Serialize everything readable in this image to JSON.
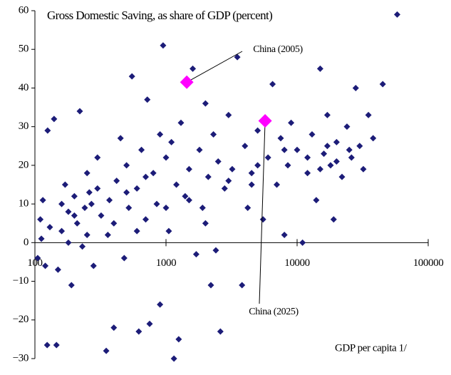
{
  "chart_data": {
    "type": "scatter",
    "title": "Gross Domestic Saving, as share of GDP (percent)",
    "x_label": "GDP per capita 1/",
    "xscale": "log",
    "xlim": [
      100,
      100000
    ],
    "xticks": [
      100,
      1000,
      10000,
      100000
    ],
    "ylim": [
      -30,
      60
    ],
    "yticks": [
      60,
      50,
      40,
      30,
      20,
      10,
      0,
      {
        "value": -10,
        "label": "−10"
      },
      {
        "value": -20,
        "label": "−20"
      },
      {
        "value": -30,
        "label": "−30"
      }
    ],
    "series": [
      {
        "color": "#1c1c78",
        "marker": "diamond",
        "x": [
          105,
          110,
          112,
          120,
          124,
          146,
          115,
          125,
          140,
          150,
          160,
          170,
          180,
          190,
          200,
          210,
          220,
          230,
          240,
          250,
          260,
          280,
          300,
          320,
          350,
          360,
          370,
          400,
          420,
          450,
          480,
          500,
          520,
          550,
          600,
          620,
          650,
          700,
          720,
          750,
          800,
          850,
          900,
          950,
          1000,
          1050,
          1100,
          1150,
          1200,
          1250,
          1300,
          1400,
          1500,
          1600,
          1700,
          1800,
          1900,
          2000,
          2100,
          2200,
          2300,
          2500,
          2600,
          2800,
          3000,
          3200,
          3500,
          3800,
          4000,
          4200,
          4500,
          5000,
          5500,
          6000,
          6500,
          7000,
          7500,
          8000,
          8500,
          9000,
          10000,
          11000,
          12000,
          13000,
          14000,
          15000,
          16000,
          17000,
          18000,
          19000,
          20000,
          22000,
          24000,
          26000,
          28000,
          30000,
          32000,
          35000,
          38000,
          45000,
          58000,
          130,
          160,
          200,
          250,
          300,
          400,
          500,
          700,
          1000,
          1500,
          2000,
          3000,
          5000,
          8000,
          12000,
          20000,
          25000,
          15000,
          180,
          270,
          600,
          900,
          2400,
          4500,
          17000
        ],
        "y": [
          -4,
          6,
          1,
          -6,
          -26.5,
          -26.5,
          11,
          29,
          32,
          -7,
          3,
          15,
          8,
          -11,
          12,
          5,
          34,
          -1,
          9,
          18,
          13,
          -6,
          22,
          7,
          -28,
          2,
          11,
          -22,
          16,
          27,
          -4,
          20,
          9,
          43,
          14,
          -23,
          24,
          6,
          37,
          -21,
          18,
          10,
          -16,
          51,
          22,
          3,
          26,
          -30,
          15,
          -25,
          31,
          12,
          19,
          45,
          -3,
          24,
          9,
          36,
          17,
          -11,
          28,
          21,
          -23,
          14,
          33,
          19,
          48,
          -11,
          25,
          9,
          18,
          29,
          6,
          22,
          41,
          15,
          27,
          2,
          20,
          31,
          24,
          0,
          18,
          28,
          11,
          45,
          23,
          33,
          20,
          6,
          26,
          17,
          30,
          22,
          40,
          25,
          19,
          33,
          27,
          41,
          59,
          4,
          10,
          7,
          2,
          14,
          5,
          13,
          17,
          9,
          11,
          5,
          16,
          20,
          24,
          22,
          21,
          24,
          19,
          0,
          10,
          3,
          28,
          -2,
          15,
          25
        ]
      },
      {
        "color": "#ff00ff",
        "marker": "diamond",
        "x": [
          1440,
          5700
        ],
        "y": [
          41.5,
          31.5
        ],
        "labels": [
          "China (2005)",
          "China (2025)"
        ]
      }
    ]
  }
}
